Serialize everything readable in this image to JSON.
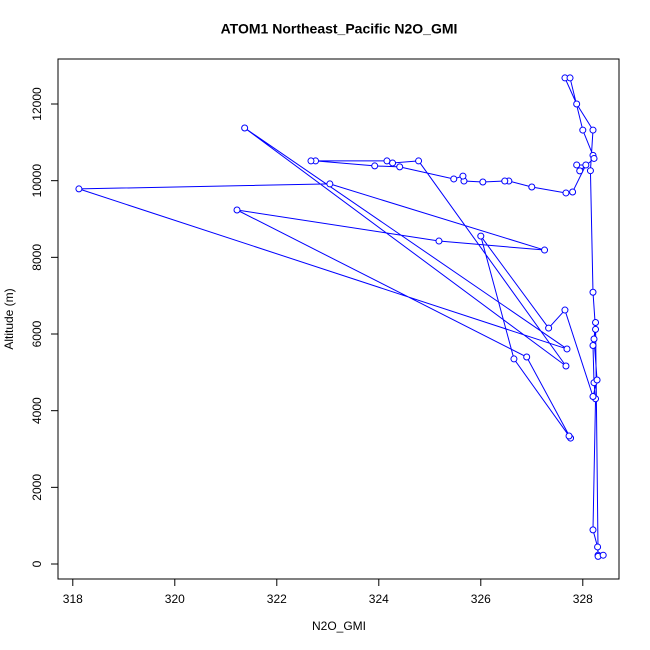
{
  "chart_data": {
    "type": "line",
    "title": "ATOM1 Northeast_Pacific N2O_GMI",
    "x_label": "N2O_GMI",
    "y_label": "Altitude (m)",
    "color": "#0000ff",
    "marker": "circle",
    "x": [
      328.3,
      328.29,
      328.2,
      328.25,
      328.22,
      328.2,
      328.25,
      328.2,
      328.15,
      328.2,
      327.88,
      327.65,
      327.75,
      328.0,
      328.2,
      328.22,
      327.94,
      327.88,
      328.06,
      327.8,
      327.67,
      327.0,
      326.55,
      326.47,
      326.04,
      325.67,
      325.65,
      325.47,
      324.41,
      323.92,
      322.76,
      322.67,
      324.16,
      324.27,
      324.78,
      327.67,
      321.37,
      327.69,
      318.12,
      323.04,
      327.25,
      325.18,
      321.22,
      326.9,
      327.76,
      327.73,
      326.65,
      326.0,
      327.33,
      327.65,
      328.2,
      328.28,
      328.22,
      328.25,
      328.3,
      328.4
    ],
    "values": [
      230,
      445,
      890,
      4310,
      4730,
      5700,
      6120,
      7090,
      10260,
      11320,
      12000,
      12680,
      12680,
      11320,
      10660,
      10580,
      10255,
      10410,
      10410,
      9705,
      9680,
      9835,
      9990,
      9990,
      9965,
      9990,
      10120,
      10045,
      10360,
      10385,
      10515,
      10515,
      10515,
      10460,
      10515,
      5165,
      11375,
      5610,
      9785,
      9915,
      8190,
      8425,
      9235,
      5400,
      3285,
      3340,
      5350,
      8555,
      6155,
      6625,
      4370,
      4800,
      5870,
      6300,
      200,
      230
    ],
    "xlim": [
      317.71,
      328.71
    ],
    "xticks": [
      318,
      320,
      322,
      324,
      326,
      328
    ],
    "ylim": [
      -391,
      13174
    ],
    "yticks": [
      0,
      2000,
      4000,
      6000,
      8000,
      10000,
      12000
    ]
  }
}
